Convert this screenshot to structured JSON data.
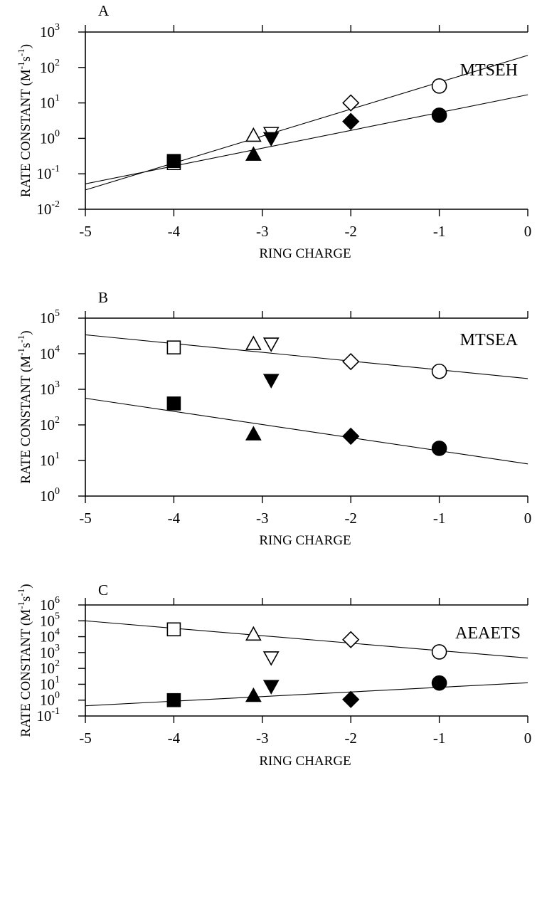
{
  "chart_data": [
    {
      "type": "scatter",
      "panel_label": "A",
      "reagent_label": "MTSEH",
      "xlabel": "RING CHARGE",
      "ylabel_main": "RATE CONSTANT (M",
      "ylabel_sup1": "-1",
      "ylabel_mid": "s",
      "ylabel_sup2": "-1",
      "ylabel_end": ")",
      "xlim": [
        -5,
        0
      ],
      "y_scale": "log",
      "ylim_exponent": [
        -2,
        3
      ],
      "x_ticks": [
        "-5",
        "-4",
        "-3",
        "-2",
        "-1",
        "0"
      ],
      "y_ticks": [
        {
          "base": "10",
          "exp": "-2"
        },
        {
          "base": "10",
          "exp": "-1"
        },
        {
          "base": "10",
          "exp": "0"
        },
        {
          "base": "10",
          "exp": "1"
        },
        {
          "base": "10",
          "exp": "2"
        },
        {
          "base": "10",
          "exp": "3"
        }
      ],
      "series": [
        {
          "marker": "square",
          "filled": false,
          "x": -4,
          "y": 0.2
        },
        {
          "marker": "square",
          "filled": true,
          "x": -4,
          "y": 0.23
        },
        {
          "marker": "triangle-up",
          "filled": false,
          "x": -3.1,
          "y": 1.2
        },
        {
          "marker": "triangle-up",
          "filled": true,
          "x": -3.1,
          "y": 0.35
        },
        {
          "marker": "triangle-down",
          "filled": false,
          "x": -2.9,
          "y": 1.4
        },
        {
          "marker": "triangle-down",
          "filled": true,
          "x": -2.9,
          "y": 1.0
        },
        {
          "marker": "diamond",
          "filled": false,
          "x": -2,
          "y": 10
        },
        {
          "marker": "diamond",
          "filled": true,
          "x": -2,
          "y": 3
        },
        {
          "marker": "circle",
          "filled": false,
          "x": -1,
          "y": 30
        },
        {
          "marker": "circle",
          "filled": true,
          "x": -1,
          "y": 4.5
        }
      ],
      "fit_lines": [
        {
          "x": [
            -5,
            0
          ],
          "y": [
            0.035,
            220
          ]
        },
        {
          "x": [
            -5,
            0
          ],
          "y": [
            0.052,
            17
          ]
        }
      ]
    },
    {
      "type": "scatter",
      "panel_label": "B",
      "reagent_label": "MTSEA",
      "xlabel": "RING CHARGE",
      "ylabel_main": "RATE CONSTANT (M",
      "ylabel_sup1": "-1",
      "ylabel_mid": "s",
      "ylabel_sup2": "-1",
      "ylabel_end": ")",
      "xlim": [
        -5,
        0
      ],
      "y_scale": "log",
      "ylim_exponent": [
        0,
        5
      ],
      "x_ticks": [
        "-5",
        "-4",
        "-3",
        "-2",
        "-1",
        "0"
      ],
      "y_ticks": [
        {
          "base": "10",
          "exp": "0"
        },
        {
          "base": "10",
          "exp": "1"
        },
        {
          "base": "10",
          "exp": "2"
        },
        {
          "base": "10",
          "exp": "3"
        },
        {
          "base": "10",
          "exp": "4"
        },
        {
          "base": "10",
          "exp": "5"
        }
      ],
      "series": [
        {
          "marker": "square",
          "filled": false,
          "x": -4,
          "y": 15000
        },
        {
          "marker": "square",
          "filled": true,
          "x": -4,
          "y": 400
        },
        {
          "marker": "triangle-up",
          "filled": false,
          "x": -3.1,
          "y": 19000
        },
        {
          "marker": "triangle-up",
          "filled": true,
          "x": -3.1,
          "y": 55
        },
        {
          "marker": "triangle-down",
          "filled": false,
          "x": -2.9,
          "y": 19000
        },
        {
          "marker": "triangle-down",
          "filled": true,
          "x": -2.9,
          "y": 1800
        },
        {
          "marker": "diamond",
          "filled": false,
          "x": -2,
          "y": 6000
        },
        {
          "marker": "diamond",
          "filled": true,
          "x": -2,
          "y": 48
        },
        {
          "marker": "circle",
          "filled": false,
          "x": -1,
          "y": 3200
        },
        {
          "marker": "circle",
          "filled": true,
          "x": -1,
          "y": 22
        }
      ],
      "fit_lines": [
        {
          "x": [
            -5,
            0
          ],
          "y": [
            34000,
            2000
          ]
        },
        {
          "x": [
            -5,
            0
          ],
          "y": [
            560,
            8
          ]
        }
      ]
    },
    {
      "type": "scatter",
      "panel_label": "C",
      "reagent_label": "AEAETS",
      "xlabel": "RING CHARGE",
      "ylabel_main": "RATE CONSTANT (M",
      "ylabel_sup1": "-1",
      "ylabel_mid": "s",
      "ylabel_sup2": "-1",
      "ylabel_end": ")",
      "xlim": [
        -5,
        0
      ],
      "y_scale": "log",
      "ylim_exponent": [
        -1,
        6
      ],
      "x_ticks": [
        "-5",
        "-4",
        "-3",
        "-2",
        "-1",
        "0"
      ],
      "y_ticks": [
        {
          "base": "10",
          "exp": "-1"
        },
        {
          "base": "10",
          "exp": "0"
        },
        {
          "base": "10",
          "exp": "1"
        },
        {
          "base": "10",
          "exp": "2"
        },
        {
          "base": "10",
          "exp": "3"
        },
        {
          "base": "10",
          "exp": "4"
        },
        {
          "base": "10",
          "exp": "5"
        },
        {
          "base": "10",
          "exp": "6"
        }
      ],
      "series": [
        {
          "marker": "square",
          "filled": false,
          "x": -4,
          "y": 29000
        },
        {
          "marker": "square",
          "filled": true,
          "x": -4,
          "y": 1.0
        },
        {
          "marker": "triangle-up",
          "filled": false,
          "x": -3.1,
          "y": 14000
        },
        {
          "marker": "triangle-up",
          "filled": true,
          "x": -3.1,
          "y": 1.9
        },
        {
          "marker": "triangle-down",
          "filled": false,
          "x": -2.9,
          "y": 480
        },
        {
          "marker": "triangle-down",
          "filled": true,
          "x": -2.9,
          "y": 7.5
        },
        {
          "marker": "diamond",
          "filled": false,
          "x": -2,
          "y": 6500
        },
        {
          "marker": "diamond",
          "filled": true,
          "x": -2,
          "y": 1.1
        },
        {
          "marker": "circle",
          "filled": false,
          "x": -1,
          "y": 1100
        },
        {
          "marker": "circle",
          "filled": true,
          "x": -1,
          "y": 12
        }
      ],
      "fit_lines": [
        {
          "x": [
            -5,
            0
          ],
          "y": [
            100000,
            450
          ]
        },
        {
          "x": [
            -5,
            0
          ],
          "y": [
            0.44,
            12.5
          ]
        }
      ]
    }
  ]
}
